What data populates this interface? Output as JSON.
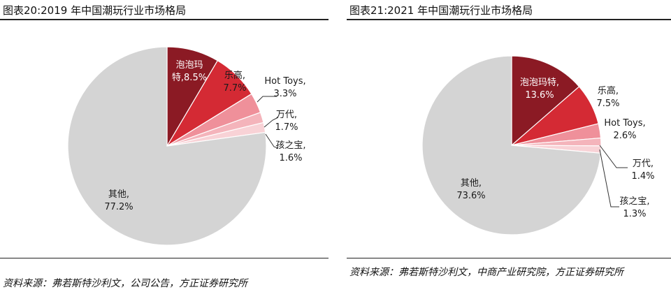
{
  "chart_data": [
    {
      "type": "pie",
      "title": "图表20:2019 年中国潮玩行业市场格局",
      "source": "资料来源：弗若斯特沙利文，公司公告，方正证券研究所",
      "slices": [
        {
          "name": "泡泡玛特",
          "label_lines": [
            "泡泡玛",
            "特,8.5%"
          ],
          "value": 8.5,
          "display": "8.5%",
          "color": "#8b1a24"
        },
        {
          "name": "乐高",
          "label_lines": [
            "乐高,",
            "7.7%"
          ],
          "value": 7.7,
          "display": "7.7%",
          "color": "#d42a34"
        },
        {
          "name": "Hot Toys",
          "label_lines": [
            "Hot Toys,",
            "3.3%"
          ],
          "value": 3.3,
          "display": "3.3%",
          "color": "#ef909a"
        },
        {
          "name": "万代",
          "label_lines": [
            "万代,",
            "1.7%"
          ],
          "value": 1.7,
          "display": "1.7%",
          "color": "#f4b4bb"
        },
        {
          "name": "孩之宝",
          "label_lines": [
            "孩之宝,",
            "1.6%"
          ],
          "value": 1.6,
          "display": "1.6%",
          "color": "#f8d2d6"
        },
        {
          "name": "其他",
          "label_lines": [
            "其他,",
            "77.2%"
          ],
          "value": 77.2,
          "display": "77.2%",
          "color": "#d4d4d4"
        }
      ]
    },
    {
      "type": "pie",
      "title": "图表21:2021 年中国潮玩行业市场格局",
      "source": "资料来源：弗若斯特沙利文，中商产业研究院，方正证券研究所",
      "slices": [
        {
          "name": "泡泡玛特",
          "label_lines": [
            "泡泡玛特,",
            "13.6%"
          ],
          "value": 13.6,
          "display": "13.6%",
          "color": "#8b1a24"
        },
        {
          "name": "乐高",
          "label_lines": [
            "乐高,",
            "7.5%"
          ],
          "value": 7.5,
          "display": "7.5%",
          "color": "#d42a34"
        },
        {
          "name": "Hot Toys",
          "label_lines": [
            "Hot Toys,",
            "2.6%"
          ],
          "value": 2.6,
          "display": "2.6%",
          "color": "#ef909a"
        },
        {
          "name": "万代",
          "label_lines": [
            "万代,",
            "1.4%"
          ],
          "value": 1.4,
          "display": "1.4%",
          "color": "#f4b4bb"
        },
        {
          "name": "孩之宝",
          "label_lines": [
            "孩之宝,",
            "1.3%"
          ],
          "value": 1.3,
          "display": "1.3%",
          "color": "#f8d2d6"
        },
        {
          "name": "其他",
          "label_lines": [
            "其他,",
            "73.6%"
          ],
          "value": 73.6,
          "display": "73.6%",
          "color": "#d4d4d4"
        }
      ]
    }
  ]
}
